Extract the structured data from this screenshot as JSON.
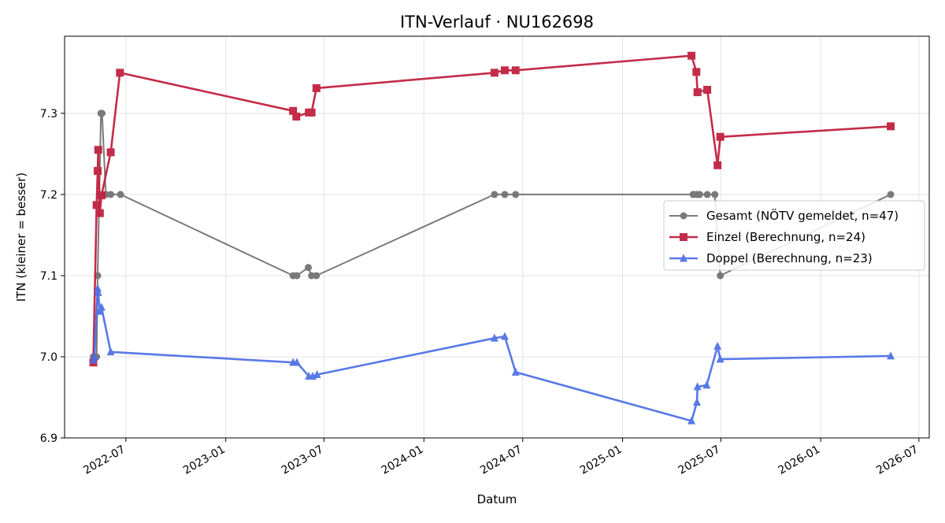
{
  "chart_data": {
    "type": "line",
    "title": "ITN-Verlauf · NU162698",
    "xlabel": "Datum",
    "ylabel": "ITN  (kleiner = besser)",
    "x_is_date": true,
    "xlim": [
      "2022-03-10",
      "2026-07-20"
    ],
    "ylim": [
      6.9,
      7.395
    ],
    "grid": true,
    "legend_position": "center-right",
    "xticks": [
      "2022-07",
      "2023-01",
      "2023-07",
      "2024-01",
      "2024-07",
      "2025-01",
      "2025-07",
      "2026-01",
      "2026-07"
    ],
    "yticks": [
      6.9,
      7.0,
      7.1,
      7.2,
      7.3
    ],
    "series": [
      {
        "name": "Gesamt (NÖTV gemeldet, n=47)",
        "color": "#555555",
        "marker": "circle",
        "points": [
          [
            "2022-05-02",
            7.0
          ],
          [
            "2022-05-08",
            7.0
          ],
          [
            "2022-05-10",
            7.1
          ],
          [
            "2022-05-16",
            7.3
          ],
          [
            "2022-05-18",
            7.3
          ],
          [
            "2022-05-25",
            7.2
          ],
          [
            "2022-06-03",
            7.2
          ],
          [
            "2022-06-21",
            7.2
          ],
          [
            "2023-05-05",
            7.1
          ],
          [
            "2023-05-12",
            7.1
          ],
          [
            "2023-06-02",
            7.11
          ],
          [
            "2023-06-08",
            7.1
          ],
          [
            "2023-06-17",
            7.1
          ],
          [
            "2024-05-10",
            7.2
          ],
          [
            "2024-05-29",
            7.2
          ],
          [
            "2024-06-18",
            7.2
          ],
          [
            "2025-05-11",
            7.2
          ],
          [
            "2025-05-17",
            7.2
          ],
          [
            "2025-05-23",
            7.2
          ],
          [
            "2025-06-06",
            7.2
          ],
          [
            "2025-06-20",
            7.2
          ],
          [
            "2025-06-30",
            7.1
          ],
          [
            "2026-05-10",
            7.2
          ]
        ]
      },
      {
        "name": "Einzel (Berechnung, n=24)",
        "color": "#c0213f",
        "marker": "square",
        "points": [
          [
            "2022-05-02",
            6.993
          ],
          [
            "2022-05-08",
            7.187
          ],
          [
            "2022-05-10",
            7.229
          ],
          [
            "2022-05-11",
            7.255
          ],
          [
            "2022-05-14",
            7.177
          ],
          [
            "2022-05-17",
            7.199
          ],
          [
            "2022-06-03",
            7.252
          ],
          [
            "2022-06-20",
            7.35
          ],
          [
            "2023-05-05",
            7.303
          ],
          [
            "2023-05-11",
            7.296
          ],
          [
            "2023-06-03",
            7.301
          ],
          [
            "2023-06-08",
            7.301
          ],
          [
            "2023-06-17",
            7.331
          ],
          [
            "2024-05-10",
            7.35
          ],
          [
            "2024-05-29",
            7.353
          ],
          [
            "2024-06-18",
            7.353
          ],
          [
            "2025-05-08",
            7.371
          ],
          [
            "2025-05-17",
            7.351
          ],
          [
            "2025-05-19",
            7.326
          ],
          [
            "2025-06-06",
            7.329
          ],
          [
            "2025-06-25",
            7.236
          ],
          [
            "2025-06-30",
            7.271
          ],
          [
            "2026-05-10",
            7.284
          ]
        ]
      },
      {
        "name": "Doppel (Berechnung, n=23)",
        "color": "#4c6ee6",
        "marker": "triangle",
        "points": [
          [
            "2022-05-02",
            6.996
          ],
          [
            "2022-05-04",
            7.0
          ],
          [
            "2022-05-10",
            7.084
          ],
          [
            "2022-05-11",
            7.079
          ],
          [
            "2022-05-14",
            7.056
          ],
          [
            "2022-05-17",
            7.061
          ],
          [
            "2022-06-03",
            7.006
          ],
          [
            "2023-05-05",
            6.993
          ],
          [
            "2023-05-12",
            6.993
          ],
          [
            "2023-06-03",
            6.976
          ],
          [
            "2023-06-10",
            6.976
          ],
          [
            "2023-06-18",
            6.978
          ],
          [
            "2024-05-10",
            7.023
          ],
          [
            "2024-05-29",
            7.025
          ],
          [
            "2024-06-18",
            6.981
          ],
          [
            "2025-05-08",
            6.921
          ],
          [
            "2025-05-18",
            6.944
          ],
          [
            "2025-05-19",
            6.963
          ],
          [
            "2025-06-05",
            6.965
          ],
          [
            "2025-06-25",
            7.013
          ],
          [
            "2025-06-30",
            6.997
          ],
          [
            "2026-05-10",
            7.001
          ]
        ]
      }
    ]
  }
}
